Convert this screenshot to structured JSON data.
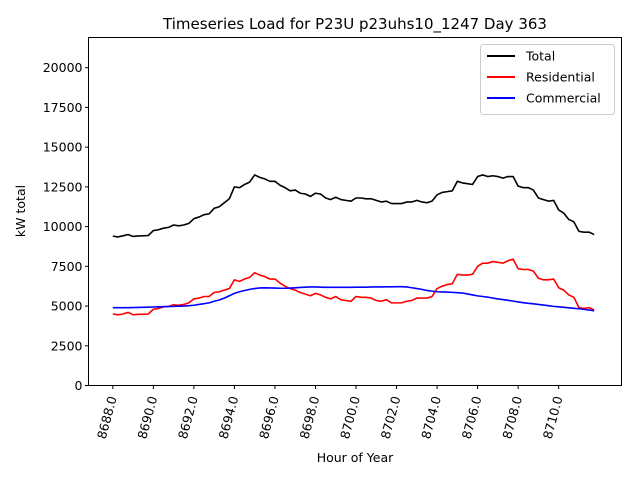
{
  "chart_data": {
    "type": "line",
    "title": "Timeseries Load for P23U p23uhs10_1247  Day 363",
    "xlabel": "Hour of Year",
    "ylabel": "kW total",
    "xlim": [
      8686.8,
      8713.1
    ],
    "ylim": [
      0,
      21900
    ],
    "xticks": [
      8688,
      8690,
      8692,
      8694,
      8696,
      8698,
      8700,
      8702,
      8704,
      8706,
      8708,
      8710
    ],
    "xtick_labels": [
      "8688.0",
      "8690.0",
      "8692.0",
      "8694.0",
      "8696.0",
      "8698.0",
      "8700.0",
      "8702.0",
      "8704.0",
      "8706.0",
      "8708.0",
      "8710.0"
    ],
    "yticks": [
      0,
      2500,
      5000,
      7500,
      10000,
      12500,
      15000,
      17500,
      20000
    ],
    "ytick_labels": [
      "0",
      "2500",
      "5000",
      "7500",
      "10000",
      "12500",
      "15000",
      "17500",
      "20000"
    ],
    "grid": false,
    "legend_position": "top-right",
    "x_start": 8688,
    "x_step": 0.25,
    "series": [
      {
        "name": "Total",
        "color": "#000000",
        "values": [
          9400,
          9350,
          9420,
          9500,
          9380,
          9410,
          9420,
          9440,
          9750,
          9800,
          9900,
          9950,
          10100,
          10050,
          10100,
          10200,
          10500,
          10600,
          10750,
          10800,
          11150,
          11250,
          11500,
          11750,
          12500,
          12450,
          12650,
          12800,
          13250,
          13100,
          13000,
          12850,
          12850,
          12600,
          12450,
          12250,
          12300,
          12100,
          12050,
          11900,
          12100,
          12050,
          11800,
          11700,
          11850,
          11700,
          11650,
          11600,
          11800,
          11800,
          11750,
          11750,
          11650,
          11550,
          11600,
          11450,
          11450,
          11450,
          11550,
          11550,
          11650,
          11550,
          11500,
          11600,
          12000,
          12150,
          12200,
          12250,
          12850,
          12750,
          12700,
          12650,
          13150,
          13250,
          13150,
          13200,
          13150,
          13050,
          13150,
          13150,
          12550,
          12450,
          12450,
          12300,
          11800,
          11700,
          11600,
          11650,
          11050,
          10850,
          10450,
          10300,
          9700,
          9650,
          9650,
          9500
        ]
      },
      {
        "name": "Residential",
        "color": "#ff0000",
        "values": [
          4500,
          4450,
          4500,
          4600,
          4450,
          4480,
          4480,
          4500,
          4800,
          4850,
          4950,
          4980,
          5080,
          5050,
          5100,
          5200,
          5450,
          5500,
          5600,
          5600,
          5850,
          5900,
          6000,
          6100,
          6650,
          6550,
          6700,
          6800,
          7100,
          6950,
          6850,
          6700,
          6700,
          6450,
          6250,
          6100,
          6000,
          5850,
          5750,
          5650,
          5800,
          5700,
          5550,
          5450,
          5600,
          5400,
          5350,
          5300,
          5600,
          5550,
          5550,
          5500,
          5350,
          5300,
          5400,
          5200,
          5200,
          5200,
          5300,
          5350,
          5500,
          5500,
          5500,
          5600,
          6100,
          6250,
          6350,
          6400,
          7000,
          6950,
          6950,
          7000,
          7500,
          7700,
          7700,
          7800,
          7750,
          7700,
          7850,
          7950,
          7350,
          7300,
          7300,
          7200,
          6750,
          6650,
          6650,
          6700,
          6150,
          6000,
          5700,
          5550,
          4900,
          4850,
          4900,
          4750
        ]
      },
      {
        "name": "Commercial",
        "color": "#0000ff",
        "values": [
          4900,
          4900,
          4900,
          4900,
          4905,
          4910,
          4920,
          4930,
          4940,
          4950,
          4960,
          4970,
          4980,
          4990,
          5000,
          5020,
          5050,
          5100,
          5150,
          5200,
          5300,
          5380,
          5500,
          5650,
          5800,
          5900,
          5980,
          6050,
          6100,
          6140,
          6150,
          6140,
          6130,
          6120,
          6120,
          6130,
          6150,
          6170,
          6190,
          6200,
          6200,
          6190,
          6180,
          6180,
          6180,
          6180,
          6180,
          6180,
          6190,
          6190,
          6190,
          6200,
          6200,
          6200,
          6210,
          6210,
          6220,
          6220,
          6200,
          6150,
          6100,
          6050,
          5980,
          5940,
          5900,
          5890,
          5880,
          5860,
          5840,
          5820,
          5760,
          5700,
          5640,
          5600,
          5560,
          5500,
          5450,
          5410,
          5360,
          5310,
          5260,
          5210,
          5170,
          5140,
          5100,
          5060,
          5020,
          4980,
          4950,
          4920,
          4890,
          4860,
          4830,
          4790,
          4750,
          4700
        ]
      }
    ]
  }
}
